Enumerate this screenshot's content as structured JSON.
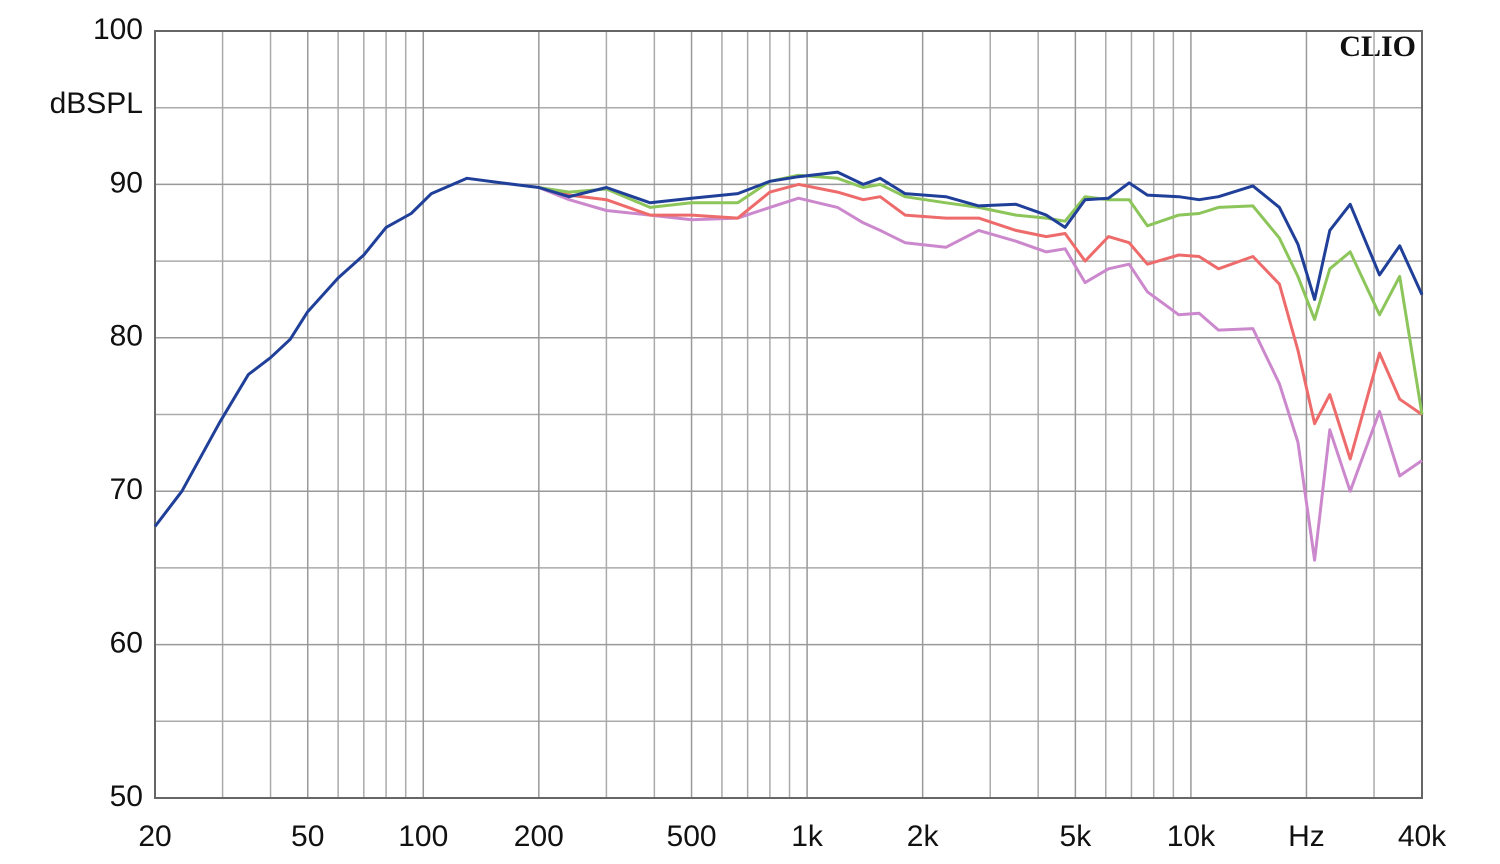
{
  "chart_data": {
    "type": "line",
    "brand": "CLIO",
    "y_label": "dBSPL",
    "log_x": true,
    "grid": true,
    "xlim": [
      20,
      40000
    ],
    "ylim": [
      50,
      100
    ],
    "xticks": [
      20,
      50,
      100,
      200,
      500,
      {
        "value": 1000,
        "label": "1k"
      },
      {
        "value": 2000,
        "label": "2k"
      },
      {
        "value": 5000,
        "label": "5k"
      },
      {
        "value": 10000,
        "label": "10k"
      },
      {
        "value": 20000,
        "label": "Hz"
      },
      {
        "value": 40000,
        "label": "40k"
      }
    ],
    "xminor": [
      30,
      40,
      60,
      70,
      80,
      90,
      300,
      400,
      600,
      700,
      800,
      900,
      3000,
      4000,
      6000,
      7000,
      8000,
      9000,
      30000
    ],
    "yticks": [
      50,
      60,
      70,
      80,
      90,
      100
    ],
    "yminor": [
      55,
      65,
      75,
      85,
      95
    ],
    "x": [
      20,
      23.5,
      29.5,
      35,
      40,
      45,
      50,
      60,
      70,
      80,
      93,
      105,
      130,
      160,
      200,
      240,
      300,
      390,
      500,
      660,
      800,
      950,
      1200,
      1400,
      1550,
      1800,
      2300,
      2800,
      3500,
      4200,
      4700,
      5300,
      6100,
      6900,
      7700,
      9300,
      10500,
      11800,
      14500,
      17000,
      19000,
      21000,
      23000,
      26000,
      31000,
      35000,
      40000
    ],
    "series": [
      {
        "color": "#cc88cc",
        "values": [
          null,
          null,
          null,
          null,
          null,
          null,
          null,
          null,
          null,
          null,
          null,
          null,
          null,
          null,
          89.8,
          89.0,
          88.3,
          88.0,
          87.7,
          87.8,
          88.5,
          89.1,
          88.5,
          87.5,
          87.0,
          86.2,
          85.9,
          87.0,
          86.3,
          85.6,
          85.8,
          83.6,
          84.5,
          84.8,
          83.0,
          81.5,
          81.6,
          80.5,
          80.6,
          77.0,
          73.2,
          65.5,
          74.0,
          70.0,
          75.2,
          71.0,
          72.0
        ]
      },
      {
        "color": "#ee6b6b",
        "values": [
          null,
          null,
          null,
          null,
          null,
          null,
          null,
          null,
          null,
          null,
          null,
          null,
          null,
          null,
          89.8,
          89.3,
          89.0,
          88.0,
          88.0,
          87.8,
          89.5,
          90.0,
          89.5,
          89.0,
          89.2,
          88.0,
          87.8,
          87.8,
          87.0,
          86.6,
          86.8,
          85.0,
          86.6,
          86.2,
          84.8,
          85.4,
          85.3,
          84.5,
          85.3,
          83.5,
          79.2,
          74.4,
          76.3,
          72.1,
          79.0,
          76.0,
          75.0
        ]
      },
      {
        "color": "#8cc55a",
        "values": [
          null,
          null,
          null,
          null,
          null,
          null,
          null,
          null,
          null,
          null,
          null,
          null,
          null,
          null,
          89.8,
          89.5,
          89.7,
          88.5,
          88.8,
          88.8,
          90.2,
          90.6,
          90.4,
          89.8,
          90.0,
          89.2,
          88.8,
          88.5,
          88.0,
          87.8,
          87.6,
          89.2,
          89.0,
          89.0,
          87.3,
          88.0,
          88.1,
          88.5,
          88.6,
          86.5,
          84.0,
          81.2,
          84.5,
          85.6,
          81.5,
          84.0,
          75.0
        ]
      },
      {
        "color": "#1f3f99",
        "values": [
          67.7,
          70,
          74.5,
          77.6,
          78.7,
          79.9,
          81.7,
          83.9,
          85.4,
          87.2,
          88.1,
          89.4,
          90.4,
          90.1,
          89.8,
          89.2,
          89.8,
          88.8,
          89.1,
          89.4,
          90.2,
          90.5,
          90.8,
          90.0,
          90.4,
          89.4,
          89.2,
          88.6,
          88.7,
          88.0,
          87.2,
          89.0,
          89.1,
          90.1,
          89.3,
          89.2,
          89.0,
          89.2,
          89.9,
          88.5,
          86.1,
          82.5,
          87.0,
          88.7,
          84.1,
          86.0,
          82.8
        ]
      }
    ]
  }
}
